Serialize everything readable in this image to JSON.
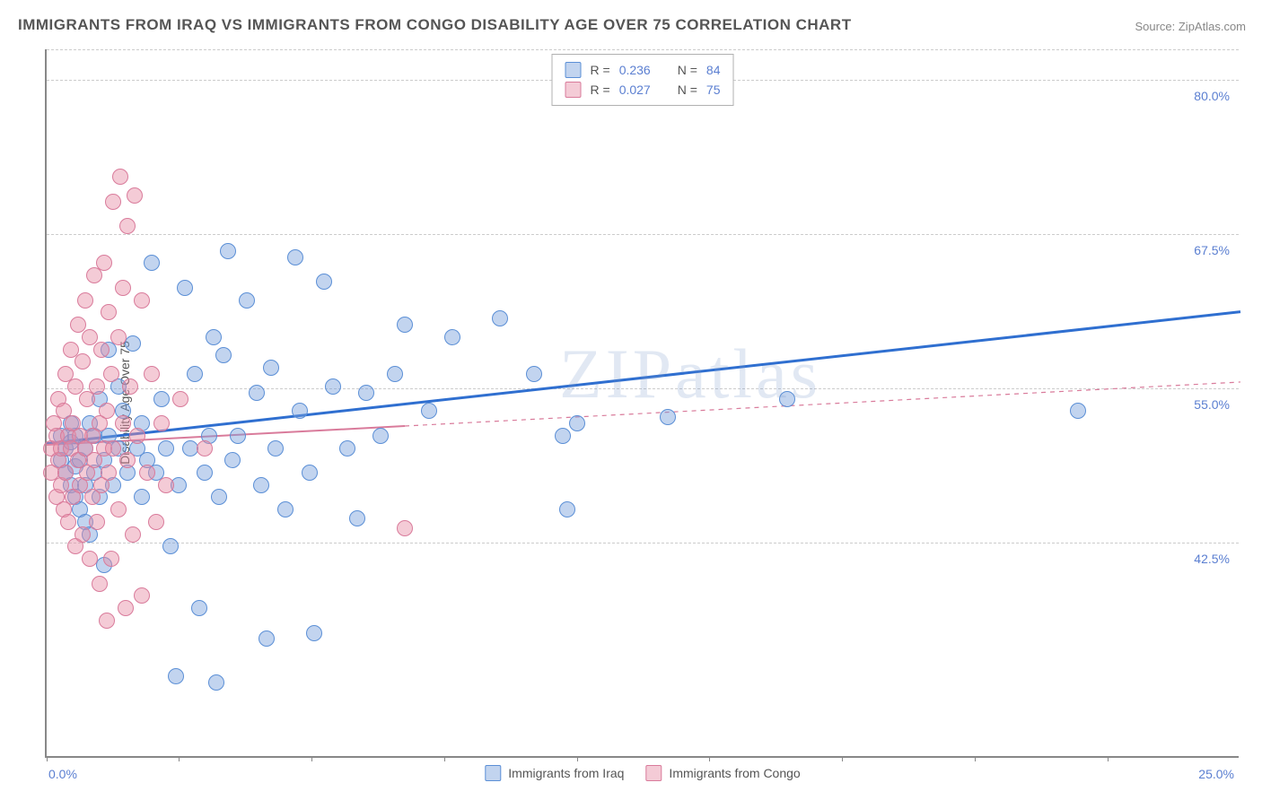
{
  "title": "IMMIGRANTS FROM IRAQ VS IMMIGRANTS FROM CONGO DISABILITY AGE OVER 75 CORRELATION CHART",
  "source": "Source: ZipAtlas.com",
  "watermark": "ZIPatlas",
  "yaxis_label": "Disability Age Over 75",
  "chart": {
    "type": "scatter",
    "xlim": [
      0,
      25
    ],
    "ylim": [
      25,
      82.5
    ],
    "y_gridlines": [
      42.5,
      55.0,
      67.5,
      80.0
    ],
    "y_tick_labels": [
      "42.5%",
      "55.0%",
      "67.5%",
      "80.0%"
    ],
    "x_ticks": [
      0,
      2.77,
      5.55,
      8.33,
      11.11,
      13.88,
      16.66,
      19.44,
      22.22
    ],
    "x_left_label": "0.0%",
    "x_right_label": "25.0%",
    "background_color": "#ffffff",
    "grid_color": "#cccccc",
    "marker_radius": 9,
    "marker_stroke_width": 1
  },
  "series": [
    {
      "name": "Immigrants from Iraq",
      "short": "iraq",
      "fill": "rgba(120,160,220,0.45)",
      "stroke": "#5b8fd6",
      "line_color": "#2f6fd0",
      "line_width": 3,
      "line_dash": "none",
      "R": "0.236",
      "N": "84",
      "trend": {
        "x1": 0,
        "y1": 50.5,
        "x2": 25,
        "y2": 61.2,
        "solid_until_x": 25
      },
      "points": [
        [
          0.3,
          49
        ],
        [
          0.3,
          51
        ],
        [
          0.4,
          48
        ],
        [
          0.4,
          50
        ],
        [
          0.5,
          47
        ],
        [
          0.5,
          50.5
        ],
        [
          0.5,
          52
        ],
        [
          0.6,
          46
        ],
        [
          0.6,
          48.5
        ],
        [
          0.6,
          51
        ],
        [
          0.7,
          45
        ],
        [
          0.7,
          49
        ],
        [
          0.8,
          44
        ],
        [
          0.8,
          47
        ],
        [
          0.8,
          50
        ],
        [
          0.9,
          43
        ],
        [
          0.9,
          52
        ],
        [
          1.0,
          48
        ],
        [
          1.0,
          51
        ],
        [
          1.1,
          46
        ],
        [
          1.1,
          54
        ],
        [
          1.2,
          40.5
        ],
        [
          1.2,
          49
        ],
        [
          1.3,
          58
        ],
        [
          1.3,
          51
        ],
        [
          1.4,
          47
        ],
        [
          1.5,
          55
        ],
        [
          1.5,
          50
        ],
        [
          1.6,
          53
        ],
        [
          1.7,
          48
        ],
        [
          1.8,
          58.5
        ],
        [
          1.9,
          50
        ],
        [
          2.0,
          52
        ],
        [
          2.0,
          46
        ],
        [
          2.1,
          49
        ],
        [
          2.2,
          65
        ],
        [
          2.3,
          48
        ],
        [
          2.4,
          54
        ],
        [
          2.5,
          50
        ],
        [
          2.6,
          42
        ],
        [
          2.7,
          31.5
        ],
        [
          2.77,
          47
        ],
        [
          2.9,
          63
        ],
        [
          3.0,
          50
        ],
        [
          3.1,
          56
        ],
        [
          3.2,
          37
        ],
        [
          3.3,
          48
        ],
        [
          3.4,
          51
        ],
        [
          3.5,
          59
        ],
        [
          3.55,
          31
        ],
        [
          3.6,
          46
        ],
        [
          3.7,
          57.5
        ],
        [
          3.8,
          66
        ],
        [
          3.9,
          49
        ],
        [
          4.0,
          51
        ],
        [
          4.2,
          62
        ],
        [
          4.4,
          54.5
        ],
        [
          4.5,
          47
        ],
        [
          4.6,
          34.5
        ],
        [
          4.7,
          56.5
        ],
        [
          4.8,
          50
        ],
        [
          5.0,
          45
        ],
        [
          5.2,
          65.5
        ],
        [
          5.3,
          53
        ],
        [
          5.5,
          48
        ],
        [
          5.6,
          35
        ],
        [
          5.8,
          63.5
        ],
        [
          6.0,
          55
        ],
        [
          6.3,
          50
        ],
        [
          6.5,
          44.3
        ],
        [
          6.7,
          54.5
        ],
        [
          7.0,
          51
        ],
        [
          7.3,
          56
        ],
        [
          7.5,
          60
        ],
        [
          8.0,
          53
        ],
        [
          8.5,
          59
        ],
        [
          9.5,
          60.5
        ],
        [
          10.2,
          56
        ],
        [
          10.8,
          51
        ],
        [
          10.9,
          45
        ],
        [
          11.1,
          52
        ],
        [
          13.0,
          52.5
        ],
        [
          15.5,
          54
        ],
        [
          21.6,
          53
        ]
      ]
    },
    {
      "name": "Immigrants from Congo",
      "short": "congo",
      "fill": "rgba(230,140,165,0.45)",
      "stroke": "#d97b9b",
      "line_color": "#d97b9b",
      "line_width": 2,
      "line_dash": "5,5",
      "R": "0.027",
      "N": "75",
      "trend": {
        "x1": 0,
        "y1": 50.4,
        "x2": 25,
        "y2": 55.5,
        "solid_until_x": 7.5
      },
      "points": [
        [
          0.1,
          50
        ],
        [
          0.1,
          48
        ],
        [
          0.15,
          52
        ],
        [
          0.2,
          46
        ],
        [
          0.2,
          51
        ],
        [
          0.25,
          49
        ],
        [
          0.25,
          54
        ],
        [
          0.3,
          47
        ],
        [
          0.3,
          50
        ],
        [
          0.35,
          53
        ],
        [
          0.35,
          45
        ],
        [
          0.4,
          56
        ],
        [
          0.4,
          48
        ],
        [
          0.45,
          51
        ],
        [
          0.45,
          44
        ],
        [
          0.5,
          58
        ],
        [
          0.5,
          50
        ],
        [
          0.55,
          46
        ],
        [
          0.55,
          52
        ],
        [
          0.6,
          42
        ],
        [
          0.6,
          55
        ],
        [
          0.65,
          49
        ],
        [
          0.65,
          60
        ],
        [
          0.7,
          47
        ],
        [
          0.7,
          51
        ],
        [
          0.75,
          57
        ],
        [
          0.75,
          43
        ],
        [
          0.8,
          50
        ],
        [
          0.8,
          62
        ],
        [
          0.85,
          48
        ],
        [
          0.85,
          54
        ],
        [
          0.9,
          41
        ],
        [
          0.9,
          59
        ],
        [
          0.95,
          46
        ],
        [
          0.95,
          51
        ],
        [
          1.0,
          64
        ],
        [
          1.0,
          49
        ],
        [
          1.05,
          55
        ],
        [
          1.05,
          44
        ],
        [
          1.1,
          39
        ],
        [
          1.1,
          52
        ],
        [
          1.15,
          58
        ],
        [
          1.15,
          47
        ],
        [
          1.2,
          65
        ],
        [
          1.2,
          50
        ],
        [
          1.25,
          36
        ],
        [
          1.25,
          53
        ],
        [
          1.3,
          61
        ],
        [
          1.3,
          48
        ],
        [
          1.35,
          56
        ],
        [
          1.35,
          41
        ],
        [
          1.4,
          70
        ],
        [
          1.4,
          50
        ],
        [
          1.5,
          45
        ],
        [
          1.5,
          59
        ],
        [
          1.55,
          72
        ],
        [
          1.6,
          63
        ],
        [
          1.6,
          52
        ],
        [
          1.65,
          37
        ],
        [
          1.7,
          68
        ],
        [
          1.7,
          49
        ],
        [
          1.75,
          55
        ],
        [
          1.8,
          43
        ],
        [
          1.85,
          70.5
        ],
        [
          1.9,
          51
        ],
        [
          2.0,
          38
        ],
        [
          2.0,
          62
        ],
        [
          2.1,
          48
        ],
        [
          2.2,
          56
        ],
        [
          2.3,
          44
        ],
        [
          2.4,
          52
        ],
        [
          2.5,
          47
        ],
        [
          2.8,
          54
        ],
        [
          3.3,
          50
        ],
        [
          7.5,
          43.5
        ]
      ]
    }
  ],
  "legend_top_label": {
    "R": "R =",
    "N": "N ="
  },
  "legend_bottom": [
    "Immigrants from Iraq",
    "Immigrants from Congo"
  ]
}
